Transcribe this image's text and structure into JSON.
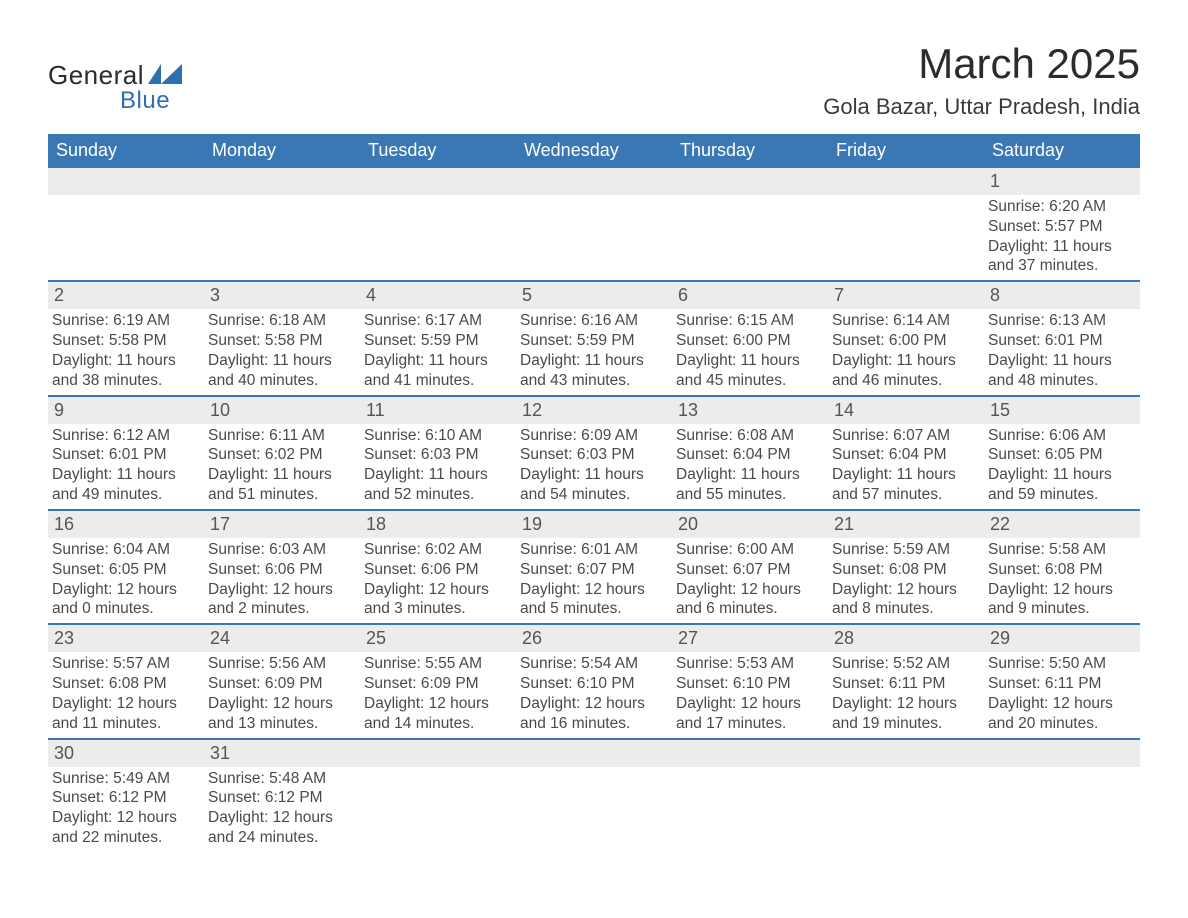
{
  "brand": {
    "general": "General",
    "blue": "Blue",
    "shape_color": "#2f6fb0"
  },
  "title": {
    "month": "March 2025",
    "location": "Gola Bazar, Uttar Pradesh, India"
  },
  "colors": {
    "header_bg": "#3a78b5",
    "header_text": "#ffffff",
    "strip_bg": "#ececec",
    "row_border": "#3a78b5",
    "body_text": "#4a4a4a"
  },
  "weekdays": [
    "Sunday",
    "Monday",
    "Tuesday",
    "Wednesday",
    "Thursday",
    "Friday",
    "Saturday"
  ],
  "labels": {
    "sunrise": "Sunrise:",
    "sunset": "Sunset:",
    "daylight": "Daylight:"
  },
  "weeks": [
    [
      null,
      null,
      null,
      null,
      null,
      null,
      {
        "n": "1",
        "sunrise": "6:20 AM",
        "sunset": "5:57 PM",
        "dl1": "11 hours",
        "dl2": "and 37 minutes."
      }
    ],
    [
      {
        "n": "2",
        "sunrise": "6:19 AM",
        "sunset": "5:58 PM",
        "dl1": "11 hours",
        "dl2": "and 38 minutes."
      },
      {
        "n": "3",
        "sunrise": "6:18 AM",
        "sunset": "5:58 PM",
        "dl1": "11 hours",
        "dl2": "and 40 minutes."
      },
      {
        "n": "4",
        "sunrise": "6:17 AM",
        "sunset": "5:59 PM",
        "dl1": "11 hours",
        "dl2": "and 41 minutes."
      },
      {
        "n": "5",
        "sunrise": "6:16 AM",
        "sunset": "5:59 PM",
        "dl1": "11 hours",
        "dl2": "and 43 minutes."
      },
      {
        "n": "6",
        "sunrise": "6:15 AM",
        "sunset": "6:00 PM",
        "dl1": "11 hours",
        "dl2": "and 45 minutes."
      },
      {
        "n": "7",
        "sunrise": "6:14 AM",
        "sunset": "6:00 PM",
        "dl1": "11 hours",
        "dl2": "and 46 minutes."
      },
      {
        "n": "8",
        "sunrise": "6:13 AM",
        "sunset": "6:01 PM",
        "dl1": "11 hours",
        "dl2": "and 48 minutes."
      }
    ],
    [
      {
        "n": "9",
        "sunrise": "6:12 AM",
        "sunset": "6:01 PM",
        "dl1": "11 hours",
        "dl2": "and 49 minutes."
      },
      {
        "n": "10",
        "sunrise": "6:11 AM",
        "sunset": "6:02 PM",
        "dl1": "11 hours",
        "dl2": "and 51 minutes."
      },
      {
        "n": "11",
        "sunrise": "6:10 AM",
        "sunset": "6:03 PM",
        "dl1": "11 hours",
        "dl2": "and 52 minutes."
      },
      {
        "n": "12",
        "sunrise": "6:09 AM",
        "sunset": "6:03 PM",
        "dl1": "11 hours",
        "dl2": "and 54 minutes."
      },
      {
        "n": "13",
        "sunrise": "6:08 AM",
        "sunset": "6:04 PM",
        "dl1": "11 hours",
        "dl2": "and 55 minutes."
      },
      {
        "n": "14",
        "sunrise": "6:07 AM",
        "sunset": "6:04 PM",
        "dl1": "11 hours",
        "dl2": "and 57 minutes."
      },
      {
        "n": "15",
        "sunrise": "6:06 AM",
        "sunset": "6:05 PM",
        "dl1": "11 hours",
        "dl2": "and 59 minutes."
      }
    ],
    [
      {
        "n": "16",
        "sunrise": "6:04 AM",
        "sunset": "6:05 PM",
        "dl1": "12 hours",
        "dl2": "and 0 minutes."
      },
      {
        "n": "17",
        "sunrise": "6:03 AM",
        "sunset": "6:06 PM",
        "dl1": "12 hours",
        "dl2": "and 2 minutes."
      },
      {
        "n": "18",
        "sunrise": "6:02 AM",
        "sunset": "6:06 PM",
        "dl1": "12 hours",
        "dl2": "and 3 minutes."
      },
      {
        "n": "19",
        "sunrise": "6:01 AM",
        "sunset": "6:07 PM",
        "dl1": "12 hours",
        "dl2": "and 5 minutes."
      },
      {
        "n": "20",
        "sunrise": "6:00 AM",
        "sunset": "6:07 PM",
        "dl1": "12 hours",
        "dl2": "and 6 minutes."
      },
      {
        "n": "21",
        "sunrise": "5:59 AM",
        "sunset": "6:08 PM",
        "dl1": "12 hours",
        "dl2": "and 8 minutes."
      },
      {
        "n": "22",
        "sunrise": "5:58 AM",
        "sunset": "6:08 PM",
        "dl1": "12 hours",
        "dl2": "and 9 minutes."
      }
    ],
    [
      {
        "n": "23",
        "sunrise": "5:57 AM",
        "sunset": "6:08 PM",
        "dl1": "12 hours",
        "dl2": "and 11 minutes."
      },
      {
        "n": "24",
        "sunrise": "5:56 AM",
        "sunset": "6:09 PM",
        "dl1": "12 hours",
        "dl2": "and 13 minutes."
      },
      {
        "n": "25",
        "sunrise": "5:55 AM",
        "sunset": "6:09 PM",
        "dl1": "12 hours",
        "dl2": "and 14 minutes."
      },
      {
        "n": "26",
        "sunrise": "5:54 AM",
        "sunset": "6:10 PM",
        "dl1": "12 hours",
        "dl2": "and 16 minutes."
      },
      {
        "n": "27",
        "sunrise": "5:53 AM",
        "sunset": "6:10 PM",
        "dl1": "12 hours",
        "dl2": "and 17 minutes."
      },
      {
        "n": "28",
        "sunrise": "5:52 AM",
        "sunset": "6:11 PM",
        "dl1": "12 hours",
        "dl2": "and 19 minutes."
      },
      {
        "n": "29",
        "sunrise": "5:50 AM",
        "sunset": "6:11 PM",
        "dl1": "12 hours",
        "dl2": "and 20 minutes."
      }
    ],
    [
      {
        "n": "30",
        "sunrise": "5:49 AM",
        "sunset": "6:12 PM",
        "dl1": "12 hours",
        "dl2": "and 22 minutes."
      },
      {
        "n": "31",
        "sunrise": "5:48 AM",
        "sunset": "6:12 PM",
        "dl1": "12 hours",
        "dl2": "and 24 minutes."
      },
      null,
      null,
      null,
      null,
      null
    ]
  ]
}
